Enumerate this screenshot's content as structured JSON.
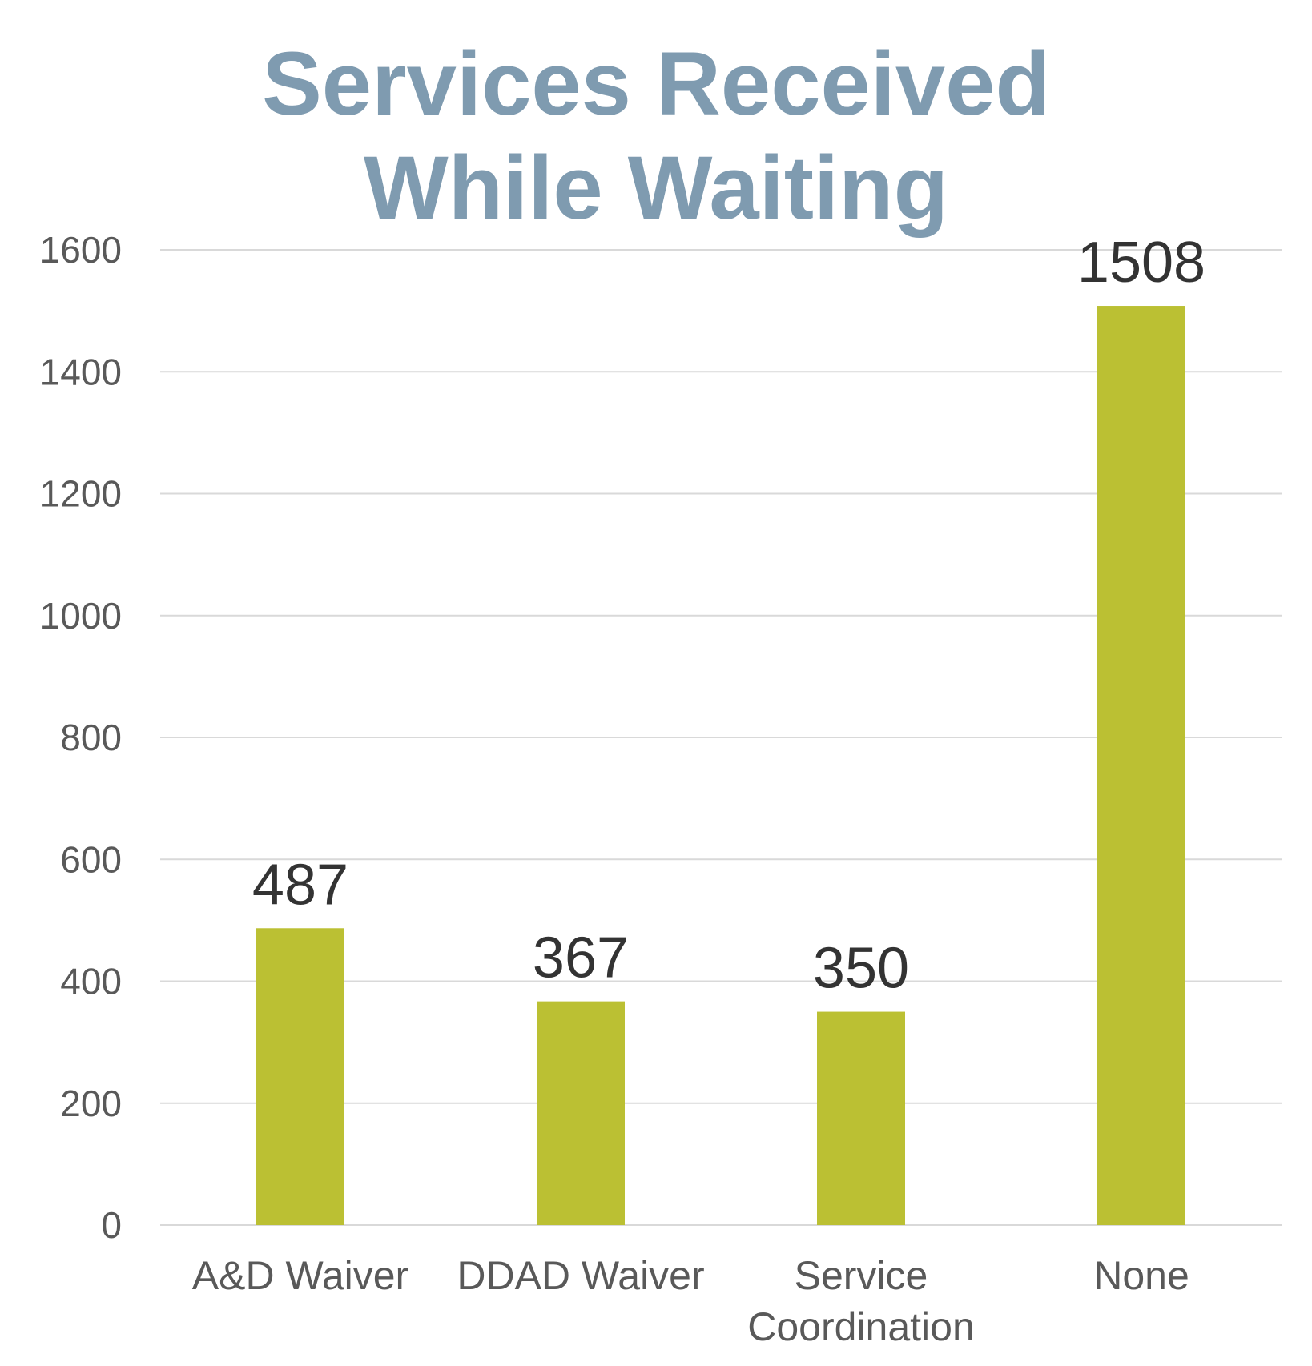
{
  "chart_data": {
    "type": "bar",
    "title": "Services Received While Waiting",
    "title_lines": [
      "Services Received",
      "While Waiting"
    ],
    "categories": [
      "A&D Waiver",
      "DDAD Waiver",
      "Service Coordination",
      "None"
    ],
    "category_lines": [
      [
        "A&D Waiver"
      ],
      [
        "DDAD Waiver"
      ],
      [
        "Service",
        "Coordination"
      ],
      [
        "None"
      ]
    ],
    "values": [
      487,
      367,
      350,
      1508
    ],
    "data_labels": [
      "487",
      "367",
      "350",
      "1508"
    ],
    "ylim": [
      0,
      1600
    ],
    "yticks": [
      0,
      200,
      400,
      600,
      800,
      1000,
      1200,
      1400,
      1600
    ],
    "xlabel": "",
    "ylabel": "",
    "grid": true,
    "legend": "none",
    "colors": {
      "bar": "#bbc033",
      "title": "#7f9bb0",
      "grid": "#d9d9d9",
      "axis_text": "#595959",
      "data_label": "#333333"
    }
  }
}
